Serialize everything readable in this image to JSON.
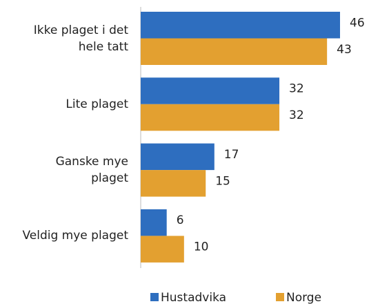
{
  "chart_data": {
    "type": "bar",
    "orientation": "horizontal",
    "categories": [
      "Ikke plaget i det\nhele tatt",
      "Lite plaget",
      "Ganske mye\nplaget",
      "Veldig mye plaget"
    ],
    "series": [
      {
        "name": "Hustadvika",
        "color": "#2e6ebf",
        "values": [
          46,
          32,
          17,
          6
        ]
      },
      {
        "name": "Norge",
        "color": "#e3a030",
        "values": [
          43,
          32,
          15,
          10
        ]
      }
    ],
    "legend": "bottom"
  }
}
